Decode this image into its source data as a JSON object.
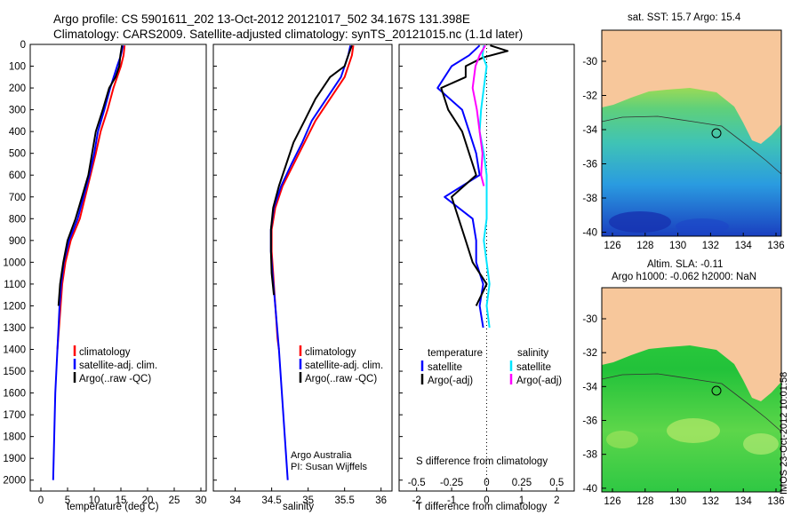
{
  "header": {
    "title_line1": "Argo profile: CS 5901611_202 13-Oct-2012 20121017_502 34.167S 131.398E",
    "title_line2": "Climatology: CARS2009. Satellite-adjusted climatology: synTS_20121015.nc (1.1d later)"
  },
  "colors": {
    "climatology": "#ff0000",
    "satellite": "#0000ff",
    "argo": "#000000",
    "salinity_satellite": "#00e5ff",
    "salinity_argo": "#ff00ff",
    "land": "#f7c79b"
  },
  "maps": {
    "sst_title": "sat. SST: 15.7 Argo: 15.4",
    "sla_title_line1": "Altim. SLA: -0.11",
    "sla_title_line2": "Argo h1000: -0.062 h2000: NaN",
    "lon_ticks": [
      "126",
      "128",
      "130",
      "132",
      "134",
      "136"
    ],
    "lat_ticks": [
      "-30",
      "-32",
      "-34",
      "-36",
      "-38",
      "-40"
    ]
  },
  "credits": {
    "line1": "Argo Australia",
    "line2": "PI: Susan Wijffels",
    "stamp": "IMOS 23-Oct-2012 10:01:58"
  },
  "chart_data": [
    {
      "type": "line",
      "xlabel": "temperature (deg C)",
      "ylabel": "",
      "xlim": [
        -2,
        31
      ],
      "ylim": [
        2050,
        0
      ],
      "xticks": [
        0,
        5,
        10,
        15,
        20,
        25,
        30
      ],
      "yticks": [
        0,
        100,
        200,
        300,
        400,
        500,
        600,
        700,
        800,
        900,
        1000,
        1100,
        1200,
        1300,
        1400,
        1500,
        1600,
        1700,
        1800,
        1900,
        2000
      ],
      "legend": {
        "position": "lower-center",
        "entries": [
          "climatology",
          "satellite-adj. clim.",
          "Argo(..raw -QC)"
        ]
      },
      "series": [
        {
          "name": "climatology",
          "color": "#ff0000",
          "depth": [
            5,
            50,
            100,
            200,
            300,
            400,
            500,
            600,
            700,
            800,
            900,
            1000,
            1100,
            1200,
            1300,
            1400
          ],
          "values": [
            15.7,
            15.5,
            15.0,
            13.6,
            12.5,
            11.2,
            10.3,
            9.3,
            8.3,
            7.3,
            5.6,
            4.6,
            4.0,
            3.7,
            3.4,
            3.1
          ]
        },
        {
          "name": "satellite-adj. clim.",
          "color": "#0000ff",
          "depth": [
            5,
            50,
            100,
            200,
            300,
            400,
            500,
            600,
            700,
            800,
            900,
            1000,
            1100,
            1200,
            1300,
            1400,
            1500,
            1600,
            1700,
            1800,
            1900,
            2000
          ],
          "values": [
            15.4,
            15.0,
            14.3,
            13.0,
            11.9,
            10.7,
            10.0,
            9.1,
            8.0,
            6.9,
            5.3,
            4.3,
            3.8,
            3.5,
            3.3,
            3.1,
            2.9,
            2.7,
            2.6,
            2.5,
            2.4,
            2.3
          ]
        },
        {
          "name": "Argo(..raw -QC)",
          "color": "#000000",
          "depth": [
            5,
            50,
            100,
            150,
            200,
            300,
            400,
            500,
            600,
            700,
            800,
            900,
            1000,
            1100,
            1200
          ],
          "values": [
            15.2,
            14.9,
            14.7,
            14.0,
            12.8,
            11.6,
            10.3,
            9.6,
            8.9,
            7.7,
            6.5,
            5.0,
            4.2,
            3.6,
            3.3
          ]
        }
      ]
    },
    {
      "type": "line",
      "xlabel": "salinity",
      "ylabel": "",
      "xlim": [
        33.7,
        36.15
      ],
      "ylim": [
        2050,
        0
      ],
      "xticks": [
        34,
        34.5,
        35,
        35.5,
        36
      ],
      "legend": {
        "position": "lower-center",
        "entries": [
          "climatology",
          "satellite-adj. clim.",
          "Argo(..raw -QC)"
        ]
      },
      "series": [
        {
          "name": "climatology",
          "color": "#ff0000",
          "depth": [
            5,
            50,
            150,
            250,
            350,
            450,
            550,
            650,
            750,
            850,
            950,
            1050,
            1150,
            1250,
            1350,
            1400
          ],
          "values": [
            35.62,
            35.6,
            35.5,
            35.3,
            35.1,
            34.95,
            34.8,
            34.65,
            34.55,
            34.5,
            34.5,
            34.52,
            34.54,
            34.56,
            34.58,
            34.6
          ]
        },
        {
          "name": "satellite-adj. clim.",
          "color": "#0000ff",
          "depth": [
            5,
            50,
            150,
            250,
            350,
            450,
            550,
            650,
            750,
            850,
            950,
            1050,
            1200,
            1400,
            1600,
            1800,
            2000
          ],
          "values": [
            35.58,
            35.55,
            35.45,
            35.25,
            35.05,
            34.92,
            34.77,
            34.63,
            34.53,
            34.49,
            34.49,
            34.51,
            34.55,
            34.6,
            34.64,
            34.68,
            34.72
          ]
        },
        {
          "name": "Argo(..raw -QC)",
          "color": "#000000",
          "depth": [
            5,
            50,
            100,
            150,
            250,
            350,
            450,
            550,
            650,
            750,
            850,
            950,
            1050,
            1150
          ],
          "values": [
            35.6,
            35.55,
            35.5,
            35.3,
            35.1,
            34.95,
            34.8,
            34.7,
            34.6,
            34.52,
            34.49,
            34.49,
            34.5,
            34.53
          ]
        }
      ]
    },
    {
      "type": "line",
      "xlabel": "T difference from climatology",
      "x2label": "S difference from climatology",
      "ylabel": "",
      "xlim": [
        -2.5,
        2.5
      ],
      "x2lim": [
        -0.625,
        0.625
      ],
      "ylim": [
        2050,
        0
      ],
      "xticks": [
        -2,
        -1,
        0,
        1,
        2
      ],
      "x2ticks": [
        -0.5,
        -0.25,
        0,
        0.25,
        0.5
      ],
      "x2tick_labels": [
        "-0.5",
        "-0.25",
        "0",
        "0.25",
        "0.5"
      ],
      "legend": {
        "position": "lower-center",
        "headers": [
          "temperature",
          "salinity"
        ],
        "entries": [
          "satellite",
          "Argo(-adj)",
          "satellite",
          "Argo(-adj)"
        ]
      },
      "series": [
        {
          "name": "satellite",
          "group": "temperature",
          "color": "#0000ff",
          "depth": [
            5,
            50,
            100,
            200,
            300,
            400,
            500,
            600,
            700,
            800,
            900,
            1000,
            1100,
            1200,
            1300
          ],
          "values": [
            -0.2,
            -0.5,
            -1.0,
            -1.4,
            -0.7,
            -0.5,
            -0.3,
            -0.2,
            -1.2,
            -0.4,
            -0.3,
            -0.3,
            -0.1,
            -0.2,
            -0.1
          ]
        },
        {
          "name": "Argo(-adj)",
          "group": "temperature",
          "color": "#000000",
          "depth": [
            5,
            30,
            60,
            100,
            150,
            200,
            300,
            400,
            500,
            600,
            700,
            800,
            900,
            1000,
            1100,
            1200
          ],
          "values": [
            0.1,
            0.6,
            -0.1,
            -0.6,
            -0.6,
            -1.3,
            -1.1,
            -0.7,
            -0.5,
            -0.3,
            -1.0,
            -0.8,
            -0.6,
            -0.4,
            0.0,
            -0.3
          ]
        },
        {
          "name": "satellite",
          "group": "salinity",
          "color": "#00e5ff",
          "depth": [
            5,
            50,
            100,
            200,
            300,
            400,
            500,
            600,
            700,
            800,
            900,
            1000,
            1100,
            1200,
            1300
          ],
          "values": [
            -0.02,
            -0.03,
            0.0,
            -0.02,
            -0.04,
            -0.05,
            -0.02,
            0.0,
            0.0,
            0.0,
            -0.02,
            0.0,
            0.02,
            0.0,
            0.02
          ]
        },
        {
          "name": "Argo(-adj)",
          "group": "salinity",
          "color": "#ff00ff",
          "depth": [
            5,
            50,
            100,
            200,
            300,
            400,
            500,
            600,
            650
          ],
          "values": [
            -0.01,
            -0.05,
            -0.08,
            -0.1,
            -0.07,
            -0.05,
            -0.03,
            -0.04,
            -0.02
          ]
        }
      ]
    }
  ]
}
